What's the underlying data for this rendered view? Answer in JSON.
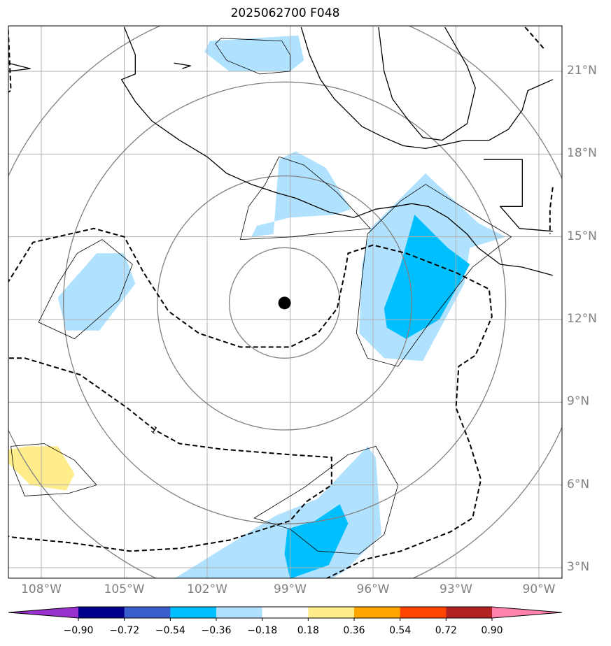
{
  "chart_data": {
    "type": "heatmap",
    "title": "2025062700 F048",
    "map_extent": {
      "lon": [
        -110,
        -89.5
      ],
      "lat": [
        2.6,
        22.6
      ]
    },
    "lon_ticks": [
      {
        "value": -108,
        "label": "108°W"
      },
      {
        "value": -105,
        "label": "105°W"
      },
      {
        "value": -102,
        "label": "102°W"
      },
      {
        "value": -99,
        "label": "99°W"
      },
      {
        "value": -96,
        "label": "96°W"
      },
      {
        "value": -93,
        "label": "93°W"
      },
      {
        "value": -90,
        "label": "90°W"
      }
    ],
    "lat_ticks": [
      {
        "value": 3,
        "label": "3°N"
      },
      {
        "value": 6,
        "label": "6°N"
      },
      {
        "value": 9,
        "label": "9°N"
      },
      {
        "value": 12,
        "label": "12°N"
      },
      {
        "value": 15,
        "label": "15°N"
      },
      {
        "value": 18,
        "label": "18°N"
      },
      {
        "value": 21,
        "label": "21°N"
      }
    ],
    "grid": true,
    "storm_center": {
      "lon": -99.2,
      "lat": 12.6
    },
    "range_rings_deg": [
      2,
      4.6,
      8,
      11
    ],
    "dashed_contour_label": "1",
    "colorbar": {
      "orientation": "horizontal",
      "extend": "both",
      "levels": [
        -0.9,
        -0.72,
        -0.54,
        -0.36,
        -0.18,
        0.18,
        0.36,
        0.54,
        0.72,
        0.9
      ],
      "tick_labels": [
        "−0.90",
        "−0.72",
        "−0.54",
        "−0.36",
        "−0.18",
        "0.18",
        "0.36",
        "0.54",
        "0.72",
        "0.90"
      ],
      "colors": [
        "#9932cc",
        "#00008b",
        "#3a5fcd",
        "#00bfff",
        "#b0e2ff",
        "#ffffff",
        "#ffec8b",
        "#ffa500",
        "#ff4500",
        "#b22222",
        "#ff82ab"
      ]
    },
    "shaded_regions": [
      {
        "level": "-0.18",
        "color": "#b0e2ff",
        "points": [
          [
            -101.9,
            22.1
          ],
          [
            -98.7,
            22.3
          ],
          [
            -98.5,
            21.4
          ],
          [
            -99.0,
            21.0
          ],
          [
            -101.2,
            21.0
          ],
          [
            -102.1,
            21.7
          ]
        ]
      },
      {
        "level": "-0.18",
        "color": "#b0e2ff",
        "points": [
          [
            -99.4,
            17.8
          ],
          [
            -98.8,
            18.1
          ],
          [
            -97.7,
            17.5
          ],
          [
            -96.8,
            16.0
          ],
          [
            -97.4,
            15.8
          ],
          [
            -99.0,
            15.7
          ],
          [
            -100.2,
            15.4
          ],
          [
            -100.4,
            15.0
          ],
          [
            -99.6,
            15.1
          ],
          [
            -99.5,
            16.5
          ]
        ]
      },
      {
        "level": "-0.18",
        "color": "#b0e2ff",
        "points": [
          [
            -96.1,
            15.3
          ],
          [
            -94.1,
            17.3
          ],
          [
            -92.2,
            15.5
          ],
          [
            -91.2,
            15.0
          ],
          [
            -92.5,
            14.6
          ],
          [
            -92.7,
            13.3
          ],
          [
            -94.2,
            10.5
          ],
          [
            -95.6,
            10.6
          ],
          [
            -96.5,
            11.5
          ],
          [
            -96.4,
            14.0
          ]
        ]
      },
      {
        "level": "-0.18",
        "color": "#b0e2ff",
        "points": [
          [
            -106.0,
            14.4
          ],
          [
            -105.0,
            14.4
          ],
          [
            -104.6,
            13.3
          ],
          [
            -105.9,
            11.6
          ],
          [
            -107.1,
            11.6
          ],
          [
            -107.4,
            12.8
          ]
        ]
      },
      {
        "level": "-0.18",
        "color": "#b0e2ff",
        "points": [
          [
            -103.2,
            2.6
          ],
          [
            -99.5,
            4.9
          ],
          [
            -98.0,
            5.5
          ],
          [
            -96.2,
            7.4
          ],
          [
            -95.9,
            7.0
          ],
          [
            -95.7,
            4.2
          ],
          [
            -97.0,
            2.9
          ],
          [
            -97.5,
            2.6
          ]
        ]
      },
      {
        "level": "-0.36",
        "color": "#00bfff",
        "points": [
          [
            -94.5,
            15.8
          ],
          [
            -93.3,
            14.6
          ],
          [
            -92.5,
            14.0
          ],
          [
            -93.6,
            12.0
          ],
          [
            -94.8,
            11.3
          ],
          [
            -95.5,
            11.7
          ],
          [
            -95.6,
            12.4
          ],
          [
            -95.0,
            14.0
          ]
        ]
      },
      {
        "level": "-0.36",
        "color": "#00bfff",
        "points": [
          [
            -99.0,
            2.6
          ],
          [
            -97.6,
            3.1
          ],
          [
            -96.9,
            4.6
          ],
          [
            -97.2,
            5.3
          ],
          [
            -98.1,
            4.7
          ],
          [
            -99.1,
            4.4
          ],
          [
            -99.2,
            3.5
          ]
        ]
      },
      {
        "level": "0.18",
        "color": "#ffec8b",
        "points": [
          [
            -109.6,
            7.2
          ],
          [
            -108.5,
            7.4
          ],
          [
            -107.4,
            7.4
          ],
          [
            -106.8,
            6.4
          ],
          [
            -107.1,
            5.8
          ],
          [
            -108.4,
            6.0
          ],
          [
            -109.0,
            6.6
          ]
        ]
      }
    ],
    "dashed_contours": [
      [
        [
          -110,
          19.8
        ],
        [
          -109.1,
          20.3
        ],
        [
          -109.2,
          22.6
        ]
      ],
      [
        [
          -110,
          12.5
        ],
        [
          -109.3,
          13.2
        ],
        [
          -108.3,
          14.8
        ],
        [
          -106.1,
          15.3
        ],
        [
          -105.0,
          15.0
        ],
        [
          -104.3,
          13.7
        ],
        [
          -103.4,
          12.3
        ],
        [
          -102.3,
          11.5
        ],
        [
          -100.8,
          11.0
        ],
        [
          -99.0,
          11.0
        ],
        [
          -98.0,
          11.5
        ],
        [
          -97.3,
          12.4
        ],
        [
          -97.0,
          13.8
        ],
        [
          -96.9,
          14.4
        ],
        [
          -96.0,
          14.7
        ],
        [
          -94.8,
          14.4
        ],
        [
          -93.0,
          13.7
        ],
        [
          -91.8,
          13.1
        ],
        [
          -91.7,
          12.1
        ],
        [
          -92.3,
          10.7
        ],
        [
          -92.9,
          10.3
        ],
        [
          -93.0,
          8.8
        ],
        [
          -92.5,
          7.5
        ],
        [
          -92.1,
          6.2
        ],
        [
          -92.4,
          4.8
        ],
        [
          -93.2,
          4.3
        ],
        [
          -95.0,
          3.6
        ],
        [
          -96.3,
          3.3
        ],
        [
          -97.7,
          2.6
        ]
      ],
      [
        [
          -110,
          10.6
        ],
        [
          -108.6,
          10.6
        ],
        [
          -106.6,
          10.0
        ],
        [
          -104.9,
          8.8
        ],
        [
          -103.9,
          8.0
        ],
        [
          -103.0,
          7.5
        ],
        [
          -101.5,
          7.3
        ],
        [
          -99.0,
          7.1
        ],
        [
          -97.5,
          7.0
        ],
        [
          -97.5,
          6.0
        ],
        [
          -98.4,
          5.4
        ],
        [
          -99.0,
          4.7
        ],
        [
          -101.2,
          4.0
        ],
        [
          -103.0,
          3.7
        ],
        [
          -104.8,
          3.6
        ],
        [
          -106.9,
          3.9
        ],
        [
          -109.0,
          4.1
        ],
        [
          -110,
          4.3
        ]
      ],
      [
        [
          -90.5,
          22.6
        ],
        [
          -89.8,
          21.8
        ]
      ],
      [
        [
          -89.5,
          16.8
        ],
        [
          -89.6,
          16.0
        ],
        [
          -89.6,
          15.1
        ]
      ]
    ],
    "thin_contours": [
      [
        [
          -99.4,
          17.9
        ],
        [
          -98.5,
          17.6
        ],
        [
          -97.3,
          16.6
        ],
        [
          -96.1,
          15.3
        ],
        [
          -97.2,
          15.2
        ],
        [
          -98.9,
          15.0
        ],
        [
          -100.8,
          14.9
        ],
        [
          -100.5,
          16.1
        ],
        [
          -99.9,
          16.9
        ]
      ],
      [
        [
          -101.5,
          22.2
        ],
        [
          -99.3,
          22.1
        ],
        [
          -99.0,
          21.6
        ],
        [
          -99.0,
          21.0
        ],
        [
          -100.1,
          20.9
        ],
        [
          -101.3,
          21.4
        ],
        [
          -101.7,
          22.0
        ]
      ],
      [
        [
          -94.1,
          16.9
        ],
        [
          -92.0,
          15.6
        ],
        [
          -91.0,
          15.0
        ],
        [
          -92.4,
          13.9
        ],
        [
          -93.8,
          12.1
        ],
        [
          -95.1,
          10.3
        ],
        [
          -96.2,
          10.6
        ],
        [
          -96.6,
          11.5
        ],
        [
          -96.4,
          13.5
        ],
        [
          -96.2,
          15.1
        ],
        [
          -95.0,
          16.3
        ]
      ],
      [
        [
          -105.8,
          14.9
        ],
        [
          -104.7,
          14.0
        ],
        [
          -105.2,
          12.7
        ],
        [
          -106.8,
          11.3
        ],
        [
          -108.1,
          11.9
        ],
        [
          -107.4,
          13.3
        ],
        [
          -106.7,
          14.4
        ]
      ],
      [
        [
          -109.1,
          7.4
        ],
        [
          -107.9,
          7.5
        ],
        [
          -106.8,
          6.9
        ],
        [
          -106.0,
          6.0
        ],
        [
          -107.0,
          5.7
        ],
        [
          -108.6,
          5.6
        ],
        [
          -109.0,
          6.6
        ]
      ],
      [
        [
          -96.9,
          7.1
        ],
        [
          -95.9,
          7.4
        ],
        [
          -95.1,
          6.0
        ],
        [
          -95.6,
          4.2
        ],
        [
          -96.5,
          3.5
        ],
        [
          -98.0,
          3.6
        ],
        [
          -99.0,
          4.4
        ],
        [
          -100.3,
          4.8
        ],
        [
          -98.5,
          5.9
        ]
      ]
    ],
    "coastlines": [
      [
        [
          -98.6,
          22.6
        ],
        [
          -98.3,
          21.6
        ],
        [
          -97.9,
          20.7
        ],
        [
          -97.4,
          20.0
        ],
        [
          -96.8,
          19.4
        ],
        [
          -96.4,
          19.0
        ],
        [
          -95.6,
          18.6
        ],
        [
          -94.9,
          18.3
        ],
        [
          -94.1,
          18.2
        ],
        [
          -92.7,
          18.5
        ],
        [
          -91.8,
          18.5
        ],
        [
          -91.1,
          18.9
        ],
        [
          -90.6,
          19.6
        ],
        [
          -90.4,
          20.3
        ],
        [
          -89.5,
          20.7
        ]
      ],
      [
        [
          -105.0,
          22.6
        ],
        [
          -104.6,
          21.6
        ],
        [
          -104.6,
          20.9
        ],
        [
          -105.1,
          20.7
        ],
        [
          -104.6,
          19.9
        ],
        [
          -104.0,
          19.2
        ],
        [
          -103.0,
          18.5
        ],
        [
          -102.0,
          17.9
        ],
        [
          -101.3,
          17.3
        ],
        [
          -100.4,
          16.9
        ],
        [
          -99.5,
          16.6
        ],
        [
          -98.8,
          16.4
        ],
        [
          -97.6,
          15.9
        ],
        [
          -96.7,
          15.7
        ],
        [
          -95.9,
          16.0
        ],
        [
          -95.2,
          16.1
        ],
        [
          -94.6,
          16.2
        ],
        [
          -94.0,
          16.1
        ],
        [
          -93.3,
          15.7
        ],
        [
          -92.6,
          15.1
        ],
        [
          -92.2,
          14.6
        ],
        [
          -91.4,
          14.0
        ],
        [
          -90.6,
          13.9
        ],
        [
          -89.5,
          13.6
        ]
      ],
      [
        [
          -93.4,
          22.6
        ],
        [
          -92.6,
          21.2
        ],
        [
          -92.3,
          20.4
        ],
        [
          -92.6,
          19.1
        ],
        [
          -93.5,
          18.5
        ],
        [
          -94.2,
          18.6
        ],
        [
          -94.7,
          19.2
        ],
        [
          -95.3,
          20.0
        ],
        [
          -95.6,
          21.0
        ],
        [
          -95.8,
          22.6
        ]
      ],
      [
        [
          -92.0,
          17.8
        ],
        [
          -90.6,
          17.8
        ],
        [
          -90.6,
          16.1
        ],
        [
          -91.4,
          16.1
        ],
        [
          -90.7,
          15.3
        ],
        [
          -89.5,
          15.2
        ]
      ],
      [
        [
          -109.2,
          21.3
        ],
        [
          -108.4,
          21.1
        ],
        [
          -110,
          20.9
        ]
      ],
      [
        [
          -103.2,
          21.3
        ],
        [
          -102.6,
          21.2
        ],
        [
          -102.9,
          21.1
        ]
      ]
    ]
  }
}
